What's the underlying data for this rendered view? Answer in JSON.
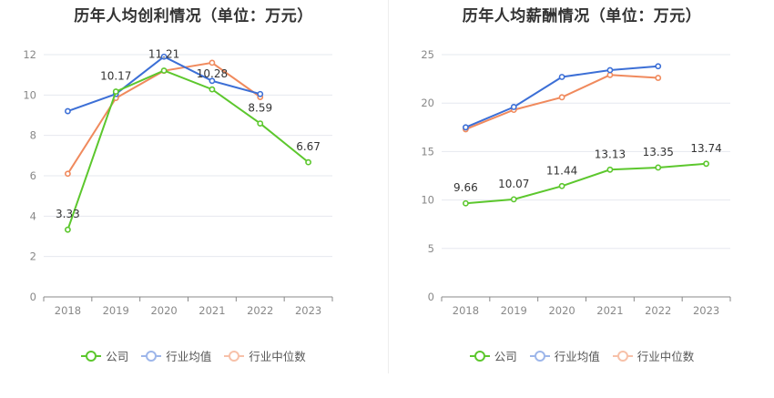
{
  "colors": {
    "company": "#5cc72d",
    "industry_avg": "#3c6fd6",
    "industry_median": "#f08a5d"
  },
  "chart_data": [
    {
      "type": "line",
      "title": "历年人均创利情况（单位：万元）",
      "categories": [
        "2018",
        "2019",
        "2020",
        "2021",
        "2022",
        "2023"
      ],
      "ylim": [
        0,
        12
      ],
      "yticks": [
        "0",
        "2",
        "4",
        "6",
        "8",
        "10",
        "12"
      ],
      "grid": true,
      "legend_position": "bottom",
      "series": [
        {
          "name": "公司",
          "key": "company",
          "values": [
            3.33,
            10.17,
            11.21,
            10.28,
            8.59,
            6.67
          ],
          "labels": [
            "3.33",
            "10.17",
            "11.21",
            "10.28",
            "8.59",
            "6.67"
          ]
        },
        {
          "name": "行业均值",
          "key": "industry_avg",
          "values": [
            9.2,
            10.05,
            11.9,
            10.7,
            10.05,
            null
          ]
        },
        {
          "name": "行业中位数",
          "key": "industry_median",
          "values": [
            6.1,
            9.85,
            11.2,
            11.6,
            9.9,
            null
          ]
        }
      ]
    },
    {
      "type": "line",
      "title": "历年人均薪酬情况（单位：万元）",
      "categories": [
        "2018",
        "2019",
        "2020",
        "2021",
        "2022",
        "2023"
      ],
      "ylim": [
        0,
        25
      ],
      "yticks": [
        "0",
        "5",
        "10",
        "15",
        "20",
        "25"
      ],
      "grid": true,
      "legend_position": "bottom",
      "series": [
        {
          "name": "公司",
          "key": "company",
          "values": [
            9.66,
            10.07,
            11.44,
            13.13,
            13.35,
            13.74
          ],
          "labels": [
            "9.66",
            "10.07",
            "11.44",
            "13.13",
            "13.35",
            "13.74"
          ]
        },
        {
          "name": "行业均值",
          "key": "industry_avg",
          "values": [
            17.5,
            19.6,
            22.7,
            23.4,
            23.8,
            null
          ]
        },
        {
          "name": "行业中位数",
          "key": "industry_median",
          "values": [
            17.3,
            19.3,
            20.6,
            22.9,
            22.6,
            null
          ]
        }
      ]
    }
  ]
}
